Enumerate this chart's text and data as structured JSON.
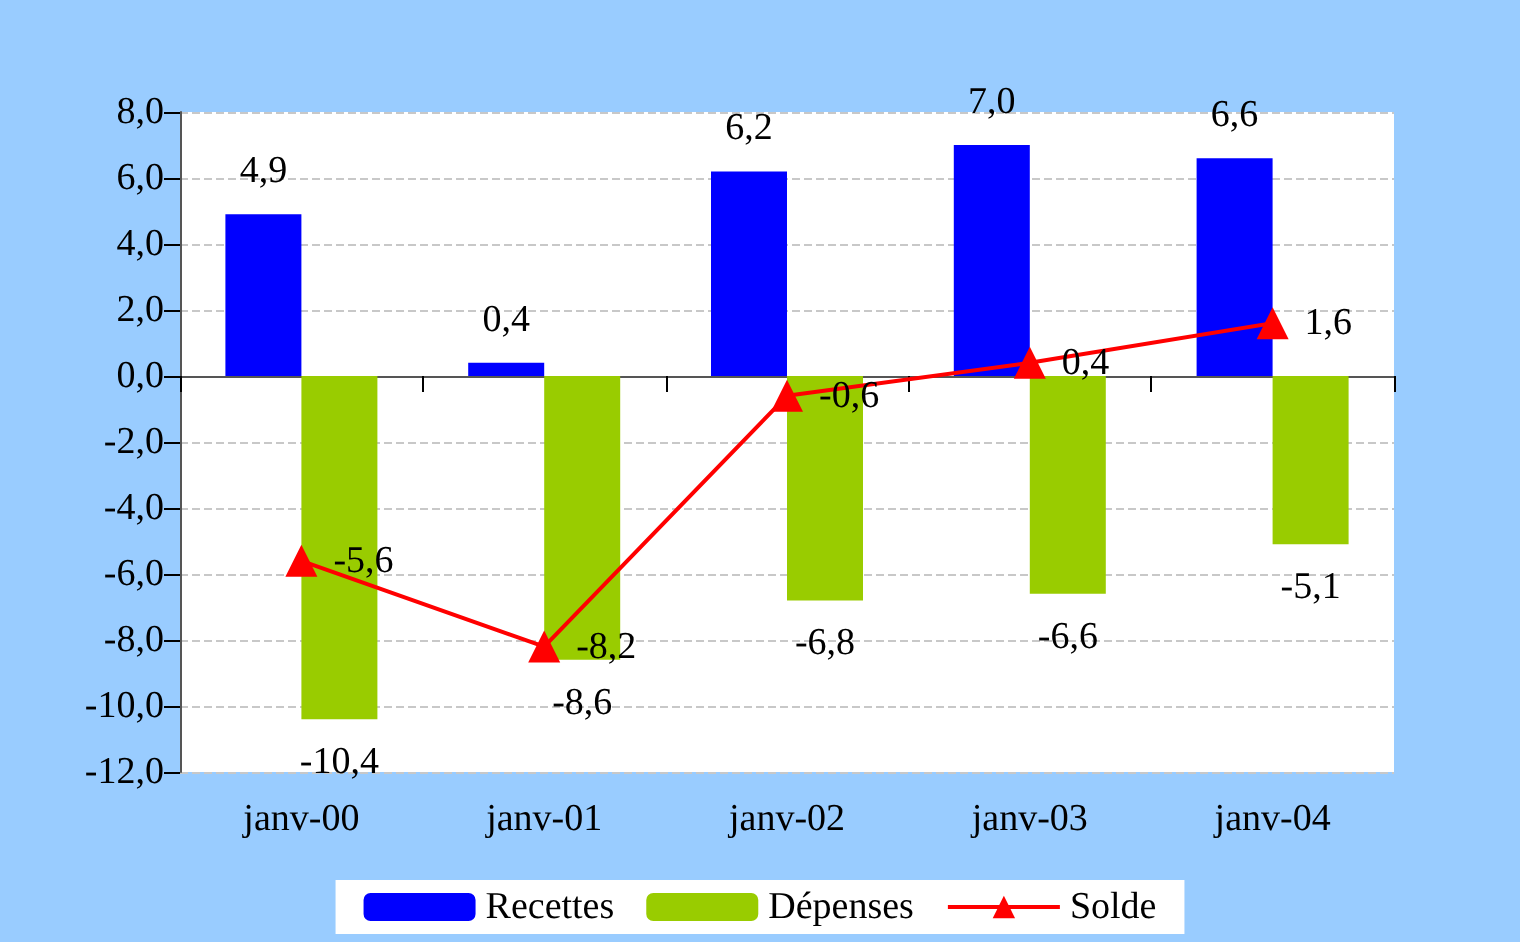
{
  "chart_data": {
    "type": "bar",
    "categories": [
      "janv-00",
      "janv-01",
      "janv-02",
      "janv-03",
      "janv-04"
    ],
    "series": [
      {
        "name": "Recettes",
        "color": "#0000ff",
        "values": [
          4.9,
          0.4,
          6.2,
          7.0,
          6.6
        ],
        "value_labels": [
          "4,9",
          "0,4",
          "6,2",
          "7,0",
          "6,6"
        ]
      },
      {
        "name": "Dépenses",
        "color": "#99cc00",
        "values": [
          -10.4,
          -8.6,
          -6.8,
          -6.6,
          -5.1
        ],
        "value_labels": [
          "-10,4",
          "-8,6",
          "-6,8",
          "-6,6",
          "-5,1"
        ]
      },
      {
        "name": "Solde",
        "type": "line",
        "color": "#ff0000",
        "marker": "triangle",
        "values": [
          -5.6,
          -8.2,
          -0.6,
          0.4,
          1.6
        ],
        "value_labels": [
          "-5,6",
          "-8,2",
          "-0,6",
          "0,4",
          "1,6"
        ]
      }
    ],
    "ylim": [
      -12,
      8
    ],
    "yticks": [
      {
        "value": -12,
        "label": "-12,0"
      },
      {
        "value": -10,
        "label": "-10,0"
      },
      {
        "value": -8,
        "label": "-8,0"
      },
      {
        "value": -6,
        "label": "-6,0"
      },
      {
        "value": -4,
        "label": "-4,0"
      },
      {
        "value": -2,
        "label": "-2,0"
      },
      {
        "value": 0,
        "label": "0,0"
      },
      {
        "value": 2,
        "label": "2,0"
      },
      {
        "value": 4,
        "label": "4,0"
      },
      {
        "value": 6,
        "label": "6,0"
      },
      {
        "value": 8,
        "label": "8,0"
      }
    ],
    "grid": "y",
    "legend": "bottom"
  }
}
